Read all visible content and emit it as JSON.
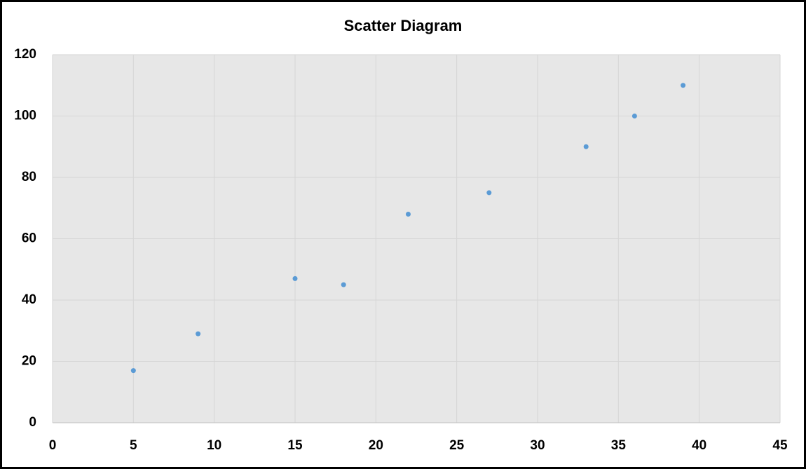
{
  "chart_data": {
    "type": "scatter",
    "title": "Scatter Diagram",
    "x": [
      5,
      9,
      15,
      18,
      22,
      27,
      33,
      36,
      39
    ],
    "values": [
      17,
      29,
      47,
      45,
      68,
      75,
      90,
      100,
      110
    ],
    "color": "#5b9bd5",
    "xlim": [
      0,
      45
    ],
    "xticks": [
      0,
      5,
      10,
      15,
      20,
      25,
      30,
      35,
      40,
      45
    ],
    "ylim": [
      0,
      120
    ],
    "yticks": [
      0,
      20,
      40,
      60,
      80,
      100,
      120
    ],
    "grid": true
  }
}
